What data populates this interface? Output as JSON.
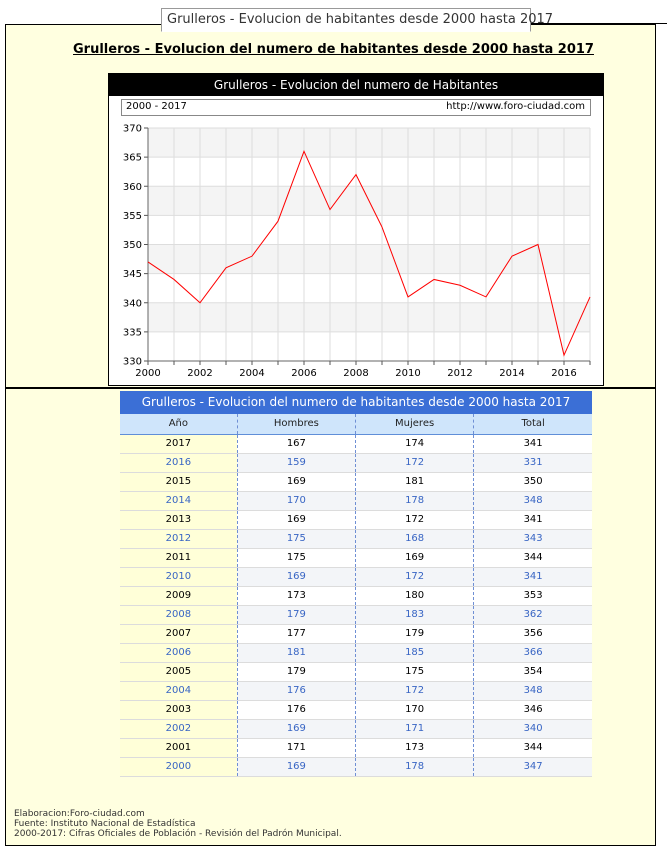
{
  "tab_title": "Grulleros - Evolucion de habitantes desde 2000 hasta 2017",
  "heading": "Grulleros - Evolucion del numero de habitantes desde 2000 hasta 2017",
  "chart_header": "Grulleros - Evolucion del numero de Habitantes",
  "chart_range_label": "2000 - 2017",
  "chart_url": "http://www.foro-ciudad.com",
  "chart_data": {
    "type": "line",
    "title": "Grulleros - Evolucion del numero de Habitantes",
    "x": [
      2000,
      2001,
      2002,
      2003,
      2004,
      2005,
      2006,
      2007,
      2008,
      2009,
      2010,
      2011,
      2012,
      2013,
      2014,
      2015,
      2016,
      2017
    ],
    "series": [
      {
        "values": [
          347,
          344,
          340,
          346,
          348,
          354,
          366,
          356,
          362,
          353,
          341,
          344,
          343,
          341,
          348,
          350,
          331,
          341
        ]
      }
    ],
    "xticks": [
      "2000",
      "2002",
      "2004",
      "2006",
      "2008",
      "2010",
      "2012",
      "2014",
      "2016"
    ],
    "yticks": [
      "330",
      "335",
      "340",
      "345",
      "350",
      "355",
      "360",
      "365",
      "370"
    ],
    "xlim": [
      2000,
      2017
    ],
    "ylim": [
      330,
      370
    ],
    "line_color": "#ff0000",
    "grid": true
  },
  "table": {
    "title": "Grulleros - Evolucion del numero de habitantes desde 2000 hasta 2017",
    "headers": [
      "Año",
      "Hombres",
      "Mujeres",
      "Total"
    ],
    "rows": [
      [
        "2017",
        "167",
        "174",
        "341"
      ],
      [
        "2016",
        "159",
        "172",
        "331"
      ],
      [
        "2015",
        "169",
        "181",
        "350"
      ],
      [
        "2014",
        "170",
        "178",
        "348"
      ],
      [
        "2013",
        "169",
        "172",
        "341"
      ],
      [
        "2012",
        "175",
        "168",
        "343"
      ],
      [
        "2011",
        "175",
        "169",
        "344"
      ],
      [
        "2010",
        "169",
        "172",
        "341"
      ],
      [
        "2009",
        "173",
        "180",
        "353"
      ],
      [
        "2008",
        "179",
        "183",
        "362"
      ],
      [
        "2007",
        "177",
        "179",
        "356"
      ],
      [
        "2006",
        "181",
        "185",
        "366"
      ],
      [
        "2005",
        "179",
        "175",
        "354"
      ],
      [
        "2004",
        "176",
        "172",
        "348"
      ],
      [
        "2003",
        "176",
        "170",
        "346"
      ],
      [
        "2002",
        "169",
        "171",
        "340"
      ],
      [
        "2001",
        "171",
        "173",
        "344"
      ],
      [
        "2000",
        "169",
        "178",
        "347"
      ]
    ]
  },
  "footer": {
    "line1": "Elaboracion:Foro-ciudad.com",
    "line2": "Fuente: Instituto Nacional de Estadística",
    "line3": "2000-2017: Cifras Oficiales de Población - Revisión del Padrón Municipal."
  }
}
